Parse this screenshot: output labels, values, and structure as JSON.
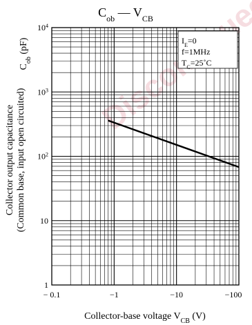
{
  "chart_data": {
    "type": "line",
    "title": {
      "main": "C",
      "main_sub": "ob",
      "sep": "—",
      "var": "V",
      "var_sub": "CB"
    },
    "xlabel": {
      "text": "Collector-base voltage  V",
      "sub": "CB",
      "unit": "  (V)"
    },
    "ylabel": {
      "line1": "Collector output capacitance",
      "line2": "(Common base, input open circuited)",
      "symbol": "C",
      "symbol_sub": "ob",
      "unit": "(pF)"
    },
    "x_scale": "log",
    "y_scale": "log",
    "xlim": [
      -0.1,
      -100
    ],
    "ylim": [
      1,
      10000
    ],
    "x_ticks": [
      {
        "value": -0.1,
        "label": "− 0.1"
      },
      {
        "value": -1,
        "label": "−1"
      },
      {
        "value": -10,
        "label": "−10"
      },
      {
        "value": -100,
        "label": "−100"
      }
    ],
    "y_ticks": [
      {
        "value": 1,
        "label": "1",
        "mant": "1",
        "exp": ""
      },
      {
        "value": 10,
        "label": "10",
        "mant": "10",
        "exp": ""
      },
      {
        "value": 100,
        "label": "10²",
        "mant": "10",
        "exp": "2"
      },
      {
        "value": 1000,
        "label": "10³",
        "mant": "10",
        "exp": "3"
      },
      {
        "value": 10000,
        "label": "10⁴",
        "mant": "10",
        "exp": "4"
      }
    ],
    "conditions": [
      {
        "sym": "I",
        "sub": "E",
        "rest": "=0"
      },
      {
        "sym": "f=1MHz",
        "sub": "",
        "rest": ""
      },
      {
        "sym": "T",
        "sub": "C",
        "rest": "=25˚C"
      }
    ],
    "series": [
      {
        "x": [
          -0.8,
          -100
        ],
        "y": [
          360,
          68
        ]
      }
    ],
    "grid": true
  },
  "watermark": "Discontinued",
  "colors": {
    "axis": "#000000",
    "grid": "#000000",
    "line": "#000000",
    "watermark": "#f5d8dc"
  }
}
